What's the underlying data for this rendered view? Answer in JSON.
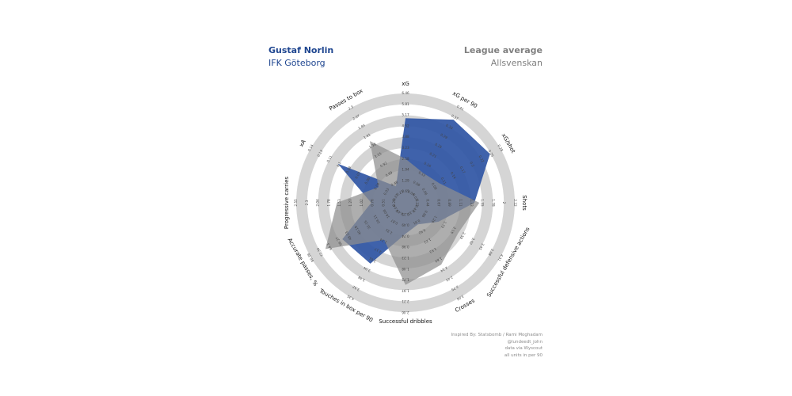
{
  "header": {
    "player_name": "Gustaf Norlin",
    "player_team": "IFK Göteborg",
    "average_title": "League average",
    "average_league": "Allsvenskan"
  },
  "credits": [
    "Inspired By: Statsbomb / Rami Moghadam",
    "@lundeedt_john",
    "data via Wyscout",
    "all units in per 90"
  ],
  "colors": {
    "player": "#2f55a4",
    "average": "#8f8f8f",
    "ring": "#d5d5d5",
    "player_text": "#1f4690",
    "average_text": "#808080"
  },
  "chart_data": {
    "type": "radar",
    "categories": [
      "xG",
      "xG per 90",
      "xG/shot",
      "Shots",
      "Successful defensive actions",
      "Crosses",
      "Successful dribbles",
      "Touches in box per 90",
      "Accurate passes, %",
      "Progressive carries",
      "xA",
      "Passes to box"
    ],
    "max_values": [
      6.46,
      0.41,
      0.28,
      2.22,
      4.31,
      3.06,
      2.46,
      4.35,
      80.38,
      2.55,
      0.14,
      2.3
    ],
    "series": [
      {
        "name": "Gustaf Norlin",
        "values": [
          5.0,
          0.36,
          0.25,
          1.4,
          1.5,
          0.7,
          0.7,
          2.8,
          53.6,
          0.8,
          0.1,
          0.4
        ]
      },
      {
        "name": "League average",
        "values": [
          2.6,
          0.13,
          0.1,
          1.5,
          2.4,
          2.0,
          1.85,
          1.7,
          68.0,
          1.6,
          0.04,
          1.5
        ]
      }
    ],
    "title": "",
    "grid": true
  }
}
